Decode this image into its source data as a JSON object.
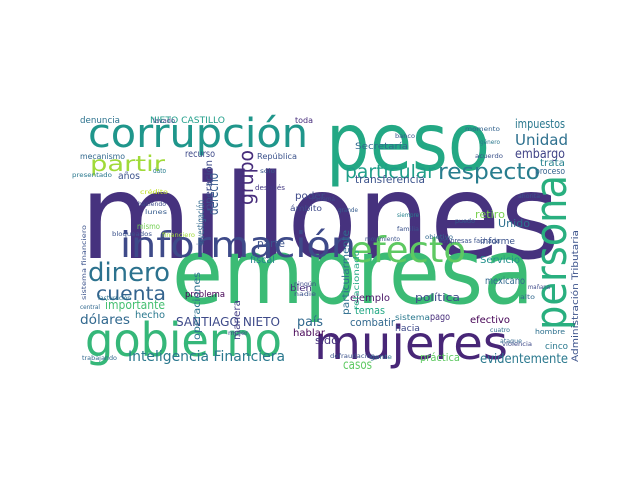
{
  "words": [
    "millones",
    "empresa",
    "peso",
    "corrupción",
    "información",
    "gobierno",
    "mujeres",
    "persona",
    "efecto",
    "dinero",
    "respecto",
    "particular",
    "partir",
    "cuenta",
    "Unidad",
    "impuestos",
    "embargo",
    "grupo",
    "derecho",
    "Inteligencia Financiera",
    "evidentemente",
    "Administración Tributaria",
    "SANTIAGO NIETO",
    "NIETO CASTILLO",
    "denuncia",
    "importante",
    "dólares",
    "problema",
    "política",
    "mexicano",
    "Servicio",
    "informe",
    "retiro",
    "Unido",
    "transferencia",
    "Secretaría",
    "trata",
    "proceso",
    "efectivo",
    "pago",
    "temas",
    "ejemplo",
    "combatir",
    "hacia",
    "sistema",
    "país",
    "sido",
    "hablar",
    "casos",
    "práctica",
    "cinco",
    "hombre",
    "poder",
    "fiscal",
    "parte",
    "bien",
    "manera",
    "hecho",
    "mismo",
    "años",
    "dato",
    "mecanismo",
    "recurso",
    "operaciones",
    "operación",
    "investigación",
    "República",
    "ámbito",
    "después",
    "Panamá",
    "toda",
    "lavado",
    "particularmente",
    "relacionado",
    "empresas fachada",
    "puedo",
    "sólo",
    "momento",
    "banco",
    "género",
    "ningún",
    "nadie",
    "grande",
    "siempre",
    "familia",
    "objetivo",
    "movimiento",
    "ahorita",
    "mañana",
    "alto",
    "cuatro",
    "ataque",
    "violencia",
    "gente",
    "defraudación",
    "central",
    "facturación",
    "trabajando",
    "haciendo",
    "lunes",
    "bloqueados",
    "financiero",
    "sistema financiero",
    "presentado",
    "crédito",
    "mujer",
    "acuerdo"
  ]
}
